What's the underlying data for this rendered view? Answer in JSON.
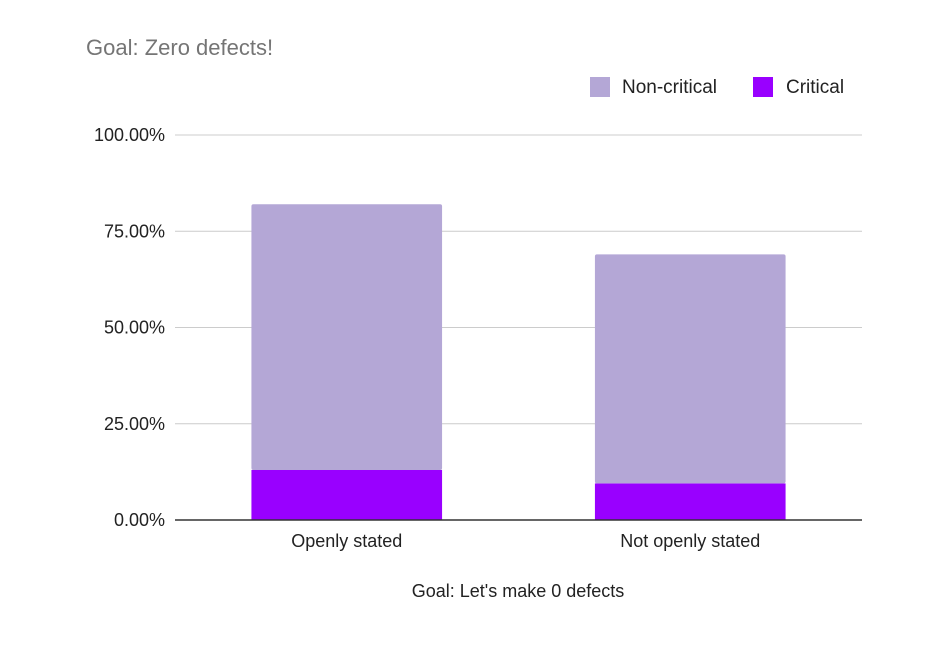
{
  "chart_data": {
    "type": "bar",
    "stacked": true,
    "title": "Goal: Zero defects!",
    "xlabel": "Goal: Let's make 0 defects",
    "ylabel": "",
    "categories": [
      "Openly stated",
      "Not openly stated"
    ],
    "series": [
      {
        "name": "Critical",
        "color": "#9900ff",
        "values": [
          0.13,
          0.095
        ]
      },
      {
        "name": "Non-critical",
        "color": "#b4a7d6",
        "values": [
          0.69,
          0.595
        ]
      }
    ],
    "legend_order": [
      "Non-critical",
      "Critical"
    ],
    "ylim": [
      0,
      1
    ],
    "yticks": [
      0,
      0.25,
      0.5,
      0.75,
      1
    ],
    "ytick_labels": [
      "0.00%",
      "25.00%",
      "50.00%",
      "75.00%",
      "100.00%"
    ],
    "grid": true,
    "legend_position": "top-right"
  }
}
